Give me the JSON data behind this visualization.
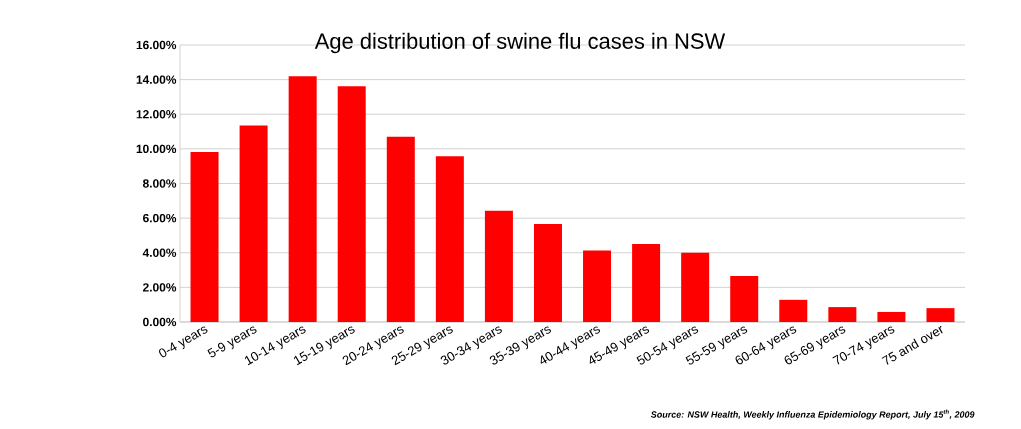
{
  "chart_data": {
    "type": "bar",
    "title": "Age distribution of swine flu cases in NSW",
    "categories": [
      "0-4 years",
      "5-9 years",
      "10-14 years",
      "15-19 years",
      "20-24 years",
      "25-29 years",
      "30-34 years",
      "35-39 years",
      "40-44 years",
      "45-49 years",
      "50-54 years",
      "55-59 years",
      "60-64 years",
      "65-69 years",
      "70-74 years",
      "75 and over"
    ],
    "values": [
      9.82,
      11.35,
      14.2,
      13.62,
      10.7,
      9.58,
      6.42,
      5.66,
      4.13,
      4.5,
      4.0,
      2.66,
      1.28,
      0.86,
      0.58,
      0.8
    ],
    "color": "#ff0000",
    "ylim": [
      0,
      16
    ],
    "yticks": [
      {
        "value": 0,
        "label": "0.00%"
      },
      {
        "value": 2,
        "label": "2.00%"
      },
      {
        "value": 4,
        "label": "4.00%"
      },
      {
        "value": 6,
        "label": "6.00%"
      },
      {
        "value": 8,
        "label": "8.00%"
      },
      {
        "value": 10,
        "label": "10.00%"
      },
      {
        "value": 12,
        "label": "12.00%"
      },
      {
        "value": 14,
        "label": "14.00%"
      },
      {
        "value": 16,
        "label": "16.00%"
      }
    ],
    "grid": "y",
    "annotations": [
      "*Source: NSW Health, Weekly Influenza Epidemiology Report, July 15$^{th}$, 2009*"
    ]
  }
}
